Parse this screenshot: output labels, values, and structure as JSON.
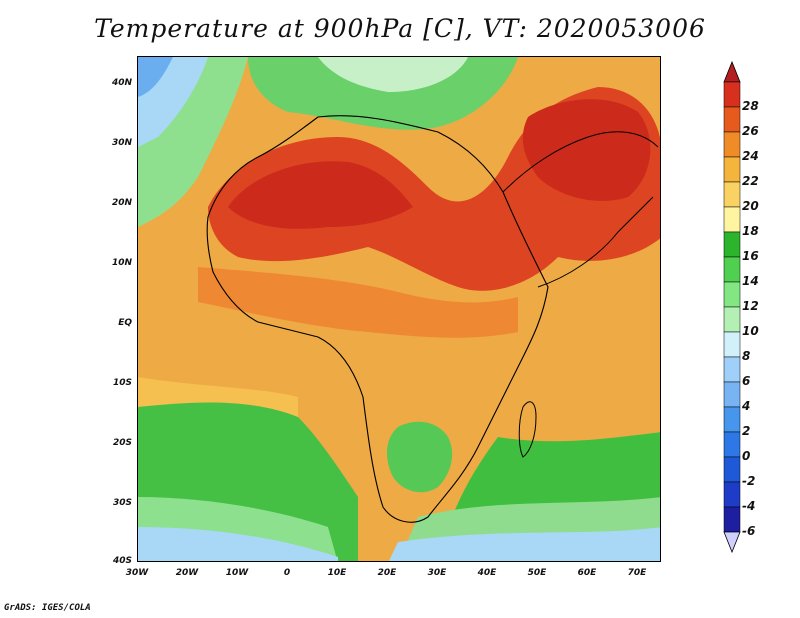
{
  "title": "Temperature at 900hPa [C], VT: 2020053006",
  "credit": "GrADS: IGES/COLA",
  "map": {
    "variable": "Temperature",
    "level": "900hPa",
    "unit": "C",
    "valid_time": "2020053006",
    "lat_range": [
      -40,
      45
    ],
    "lon_range": [
      -30,
      75
    ],
    "lat_ticks": [
      "40N",
      "30N",
      "20N",
      "10N",
      "EQ",
      "10S",
      "20S",
      "30S",
      "40S"
    ],
    "lon_ticks": [
      "30W",
      "20W",
      "10W",
      "0",
      "10E",
      "20E",
      "30E",
      "40E",
      "50E",
      "60E",
      "70E"
    ]
  },
  "colorbar": {
    "labels": [
      "28",
      "26",
      "24",
      "22",
      "20",
      "18",
      "16",
      "14",
      "12",
      "10",
      "8",
      "6",
      "4",
      "2",
      "0",
      "-2",
      "-4",
      "-6"
    ],
    "colors": [
      "#d0d0ff",
      "#1e1ea0",
      "#1e3cc8",
      "#1e5ad8",
      "#2d78e6",
      "#4696ee",
      "#78b4f4",
      "#a0d0fa",
      "#d2f0fa",
      "#b4f0b4",
      "#82e682",
      "#50d050",
      "#2db42d",
      "#fff5a0",
      "#fad264",
      "#f5b43c",
      "#f08c28",
      "#e65a1e",
      "#d7301e",
      "#b41e1e"
    ]
  }
}
